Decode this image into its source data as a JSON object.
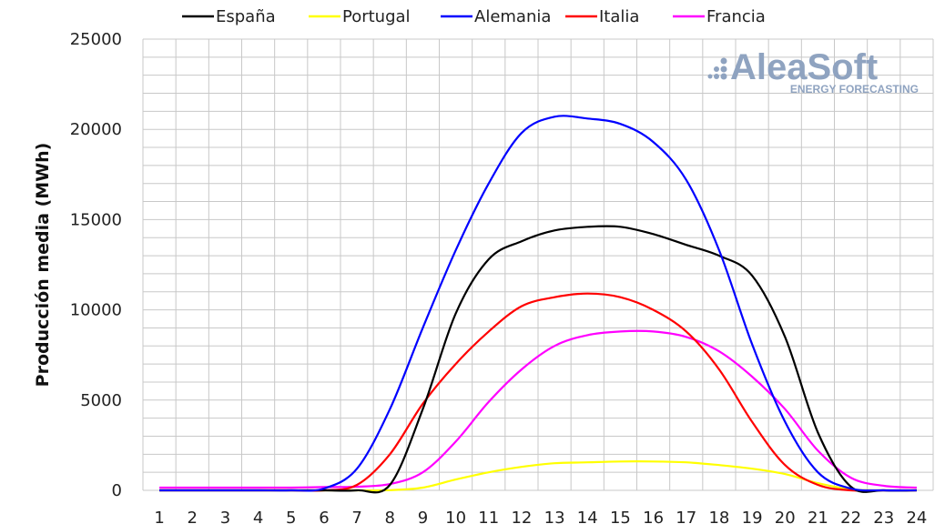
{
  "chart_data": {
    "type": "line",
    "title": "",
    "xlabel": "",
    "ylabel": "Producción media (MWh)",
    "categories": [
      "1",
      "2",
      "3",
      "4",
      "5",
      "6",
      "7",
      "8",
      "9",
      "10",
      "11",
      "12",
      "13",
      "14",
      "15",
      "16",
      "17",
      "18",
      "19",
      "20",
      "21",
      "22",
      "23",
      "24"
    ],
    "ylim": [
      0,
      25000
    ],
    "yticks": [
      0,
      5000,
      10000,
      15000,
      20000,
      25000
    ],
    "grid": true,
    "legend_position": "top",
    "series": [
      {
        "name": "España",
        "color": "#000000",
        "values": [
          0,
          0,
          0,
          0,
          0,
          0,
          0,
          300,
          4500,
          9800,
          12800,
          13800,
          14400,
          14600,
          14600,
          14200,
          13600,
          13000,
          11900,
          8500,
          3200,
          200,
          0,
          0
        ]
      },
      {
        "name": "Portugal",
        "color": "#ffff00",
        "values": [
          0,
          0,
          0,
          0,
          0,
          0,
          0,
          10,
          150,
          600,
          1000,
          1300,
          1500,
          1550,
          1600,
          1600,
          1550,
          1400,
          1200,
          900,
          400,
          50,
          0,
          0
        ]
      },
      {
        "name": "Alemania",
        "color": "#0000ff",
        "values": [
          0,
          0,
          0,
          0,
          0,
          100,
          1200,
          4500,
          9000,
          13300,
          17000,
          19800,
          20700,
          20600,
          20300,
          19300,
          17200,
          13300,
          8100,
          3800,
          1000,
          100,
          0,
          0
        ]
      },
      {
        "name": "Italia",
        "color": "#ff0000",
        "values": [
          0,
          0,
          0,
          0,
          0,
          0,
          300,
          2000,
          4800,
          7000,
          8800,
          10200,
          10700,
          10900,
          10700,
          10000,
          8800,
          6700,
          3800,
          1400,
          300,
          0,
          0,
          0
        ]
      },
      {
        "name": "Francia",
        "color": "#ff00ff",
        "values": [
          150,
          150,
          150,
          150,
          150,
          180,
          200,
          350,
          1000,
          2700,
          4900,
          6700,
          8000,
          8600,
          8800,
          8800,
          8500,
          7700,
          6300,
          4500,
          2200,
          700,
          250,
          150
        ]
      }
    ]
  },
  "logo": {
    "main": "AleaSoft",
    "sub": "ENERGY FORECASTING"
  }
}
